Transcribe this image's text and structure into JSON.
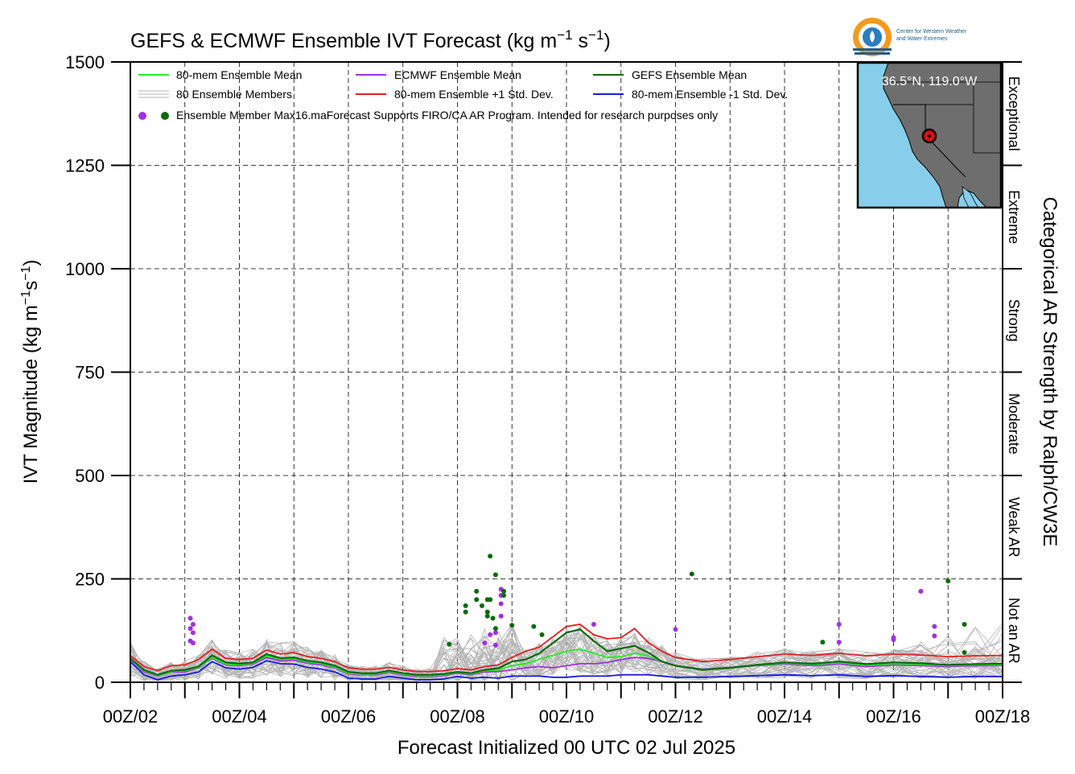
{
  "chart_data": {
    "type": "line",
    "title_main": "GEFS & ECMWF Ensemble IVT Forecast (kg m",
    "title_exp1": "−1",
    "title_mid": " s",
    "title_exp2": "−1",
    "title_end": ")",
    "ylabel_main": "IVT Magnitude (kg m",
    "ylabel_exp1": "−1",
    "ylabel_mid": "s",
    "ylabel_exp2": "−1",
    "ylabel_end": ")",
    "xlabel": "Forecast Initialized 00 UTC 02 Jul 2025",
    "right_label": "Categorical AR Strength by Ralph/CW3E",
    "ylim": [
      0,
      1500
    ],
    "xlim": [
      0,
      16
    ],
    "y_ticks": [
      0,
      250,
      500,
      750,
      1000,
      1250,
      1500
    ],
    "y_tick_labels": [
      "0",
      "250",
      "500",
      "750",
      "1000",
      "1250",
      "1500"
    ],
    "x_tick_labels": [
      "00Z/02",
      "00Z/04",
      "00Z/06",
      "00Z/08",
      "00Z/10",
      "00Z/12",
      "00Z/14",
      "00Z/16",
      "00Z/18"
    ],
    "grid": true,
    "categories": [
      {
        "label": "Not an AR",
        "range": [
          0,
          250
        ]
      },
      {
        "label": "Weak AR",
        "range": [
          250,
          500
        ]
      },
      {
        "label": "Moderate",
        "range": [
          500,
          750
        ]
      },
      {
        "label": "Strong",
        "range": [
          750,
          1000
        ]
      },
      {
        "label": "Extreme",
        "range": [
          1000,
          1250
        ]
      },
      {
        "label": "Exceptional",
        "range": [
          1250,
          1500
        ]
      }
    ],
    "legend": {
      "ens_mean": "80-mem Ensemble Mean",
      "ecmwf_mean": "ECMWF Ensemble Mean",
      "gefs_mean": "GEFS Ensemble Mean",
      "members": "80 Ensemble Members",
      "plus_std": "80-mem Ensemble +1 Std. Dev.",
      "minus_std": "80-mem Ensemble -1 Std. Dev.",
      "max_note": "Ensemble Member Max16.maForecast Supports FIRO/CA AR Program. Intended for research purposes only"
    },
    "colors": {
      "ens_mean": "#22ee22",
      "ecmwf_mean": "#a030e0",
      "gefs_mean": "#0a6a0a",
      "members": "#b4b4b4",
      "plus_std": "#e02020",
      "minus_std": "#1a1ae0",
      "ocean": "#87ceeb",
      "land": "#6e6e6e",
      "marker": "#e01010"
    },
    "series": [
      {
        "key": "gefs_mean",
        "x": [
          0,
          0.25,
          0.5,
          0.75,
          1,
          1.25,
          1.5,
          1.75,
          2,
          2.25,
          2.5,
          2.75,
          3,
          3.25,
          3.5,
          3.75,
          4,
          4.25,
          4.5,
          4.75,
          5,
          5.25,
          5.5,
          5.75,
          6,
          6.25,
          6.5,
          6.75,
          7,
          7.25,
          7.5,
          7.75,
          8,
          8.25,
          8.5,
          8.75,
          9,
          9.25,
          9.5,
          9.75,
          10,
          10.5,
          11,
          11.5,
          12,
          12.5,
          13,
          13.5,
          14,
          14.5,
          15,
          15.5,
          16
        ],
        "values": [
          58,
          30,
          18,
          28,
          30,
          38,
          65,
          48,
          45,
          48,
          68,
          58,
          60,
          52,
          48,
          40,
          25,
          22,
          22,
          28,
          22,
          18,
          18,
          20,
          25,
          22,
          30,
          34,
          50,
          55,
          70,
          95,
          120,
          128,
          100,
          75,
          82,
          88,
          72,
          50,
          40,
          30,
          35,
          42,
          48,
          45,
          50,
          44,
          48,
          46,
          42,
          44,
          45
        ]
      },
      {
        "key": "plus_std",
        "x": [
          0,
          0.25,
          0.5,
          0.75,
          1,
          1.25,
          1.5,
          1.75,
          2,
          2.25,
          2.5,
          2.75,
          3,
          3.25,
          3.5,
          3.75,
          4,
          4.25,
          4.5,
          4.75,
          5,
          5.25,
          5.5,
          5.75,
          6,
          6.25,
          6.5,
          6.75,
          7,
          7.25,
          7.5,
          7.75,
          8,
          8.25,
          8.5,
          8.75,
          9,
          9.25,
          9.5,
          9.75,
          10,
          10.5,
          11,
          11.5,
          12,
          12.5,
          13,
          13.5,
          14,
          14.5,
          15,
          15.5,
          16
        ],
        "values": [
          65,
          38,
          28,
          40,
          42,
          55,
          80,
          58,
          55,
          58,
          78,
          68,
          72,
          62,
          58,
          50,
          35,
          32,
          32,
          36,
          30,
          26,
          26,
          28,
          33,
          30,
          38,
          42,
          60,
          75,
          85,
          110,
          135,
          140,
          115,
          105,
          108,
          130,
          96,
          75,
          60,
          50,
          55,
          62,
          68,
          65,
          70,
          64,
          68,
          66,
          62,
          64,
          65
        ]
      },
      {
        "key": "ecmwf_mean",
        "x": [
          0,
          0.25,
          0.5,
          0.75,
          1,
          1.25,
          1.5,
          1.75,
          2,
          2.25,
          2.5,
          2.75,
          3,
          3.25,
          3.5,
          3.75,
          4,
          4.25,
          4.5,
          4.75,
          5,
          5.25,
          5.5,
          5.75,
          6,
          6.25,
          6.5,
          6.75,
          7,
          7.25,
          7.5,
          7.75,
          8,
          8.25,
          8.5,
          8.75,
          9,
          9.25,
          9.5,
          9.75,
          10,
          10.5,
          11,
          11.5,
          12,
          12.5,
          13,
          13.5,
          14,
          14.5,
          15,
          15.5,
          16
        ],
        "values": [
          55,
          25,
          15,
          25,
          25,
          35,
          58,
          42,
          40,
          44,
          60,
          52,
          54,
          46,
          42,
          35,
          20,
          18,
          18,
          24,
          18,
          14,
          14,
          16,
          22,
          18,
          25,
          26,
          30,
          35,
          38,
          35,
          40,
          45,
          45,
          48,
          55,
          60,
          58,
          50,
          40,
          32,
          36,
          40,
          44,
          40,
          44,
          38,
          42,
          40,
          38,
          40,
          40
        ]
      },
      {
        "key": "ens_mean",
        "x": [
          0,
          0.25,
          0.5,
          0.75,
          1,
          1.25,
          1.5,
          1.75,
          2,
          2.25,
          2.5,
          2.75,
          3,
          3.25,
          3.5,
          3.75,
          4,
          4.25,
          4.5,
          4.75,
          5,
          5.25,
          5.5,
          5.75,
          6,
          6.25,
          6.5,
          6.75,
          7,
          7.25,
          7.5,
          7.75,
          8,
          8.25,
          8.5,
          8.75,
          9,
          9.25,
          9.5,
          9.75,
          10,
          10.5,
          11,
          11.5,
          12,
          12.5,
          13,
          13.5,
          14,
          14.5,
          15,
          15.5,
          16
        ],
        "values": [
          56,
          28,
          16,
          26,
          28,
          36,
          60,
          44,
          42,
          46,
          64,
          55,
          57,
          49,
          45,
          37,
          22,
          20,
          20,
          26,
          20,
          16,
          16,
          18,
          24,
          20,
          28,
          30,
          40,
          45,
          55,
          65,
          75,
          80,
          70,
          60,
          62,
          70,
          64,
          50,
          40,
          31,
          35,
          41,
          46,
          43,
          47,
          41,
          45,
          43,
          40,
          42,
          42
        ]
      },
      {
        "key": "minus_std",
        "x": [
          0,
          0.25,
          0.5,
          0.75,
          1,
          1.25,
          1.5,
          1.75,
          2,
          2.25,
          2.5,
          2.75,
          3,
          3.25,
          3.5,
          3.75,
          4,
          4.25,
          4.5,
          4.75,
          5,
          5.25,
          5.5,
          5.75,
          6,
          6.25,
          6.5,
          6.75,
          7,
          7.25,
          7.5,
          7.75,
          8,
          8.25,
          8.5,
          8.75,
          9,
          9.25,
          9.5,
          9.75,
          10,
          10.5,
          11,
          11.5,
          12,
          12.5,
          13,
          13.5,
          14,
          14.5,
          15,
          15.5,
          16
        ],
        "values": [
          50,
          18,
          6,
          15,
          18,
          25,
          50,
          35,
          32,
          36,
          52,
          45,
          44,
          36,
          32,
          25,
          10,
          8,
          8,
          14,
          10,
          6,
          6,
          8,
          14,
          10,
          12,
          10,
          15,
          15,
          15,
          12,
          12,
          15,
          15,
          15,
          18,
          18,
          18,
          15,
          12,
          12,
          14,
          16,
          18,
          16,
          18,
          14,
          16,
          14,
          12,
          14,
          14
        ]
      }
    ],
    "member_dots_ecmwf": [
      {
        "x": 1.1,
        "y": 155
      },
      {
        "x": 1.1,
        "y": 130
      },
      {
        "x": 1.1,
        "y": 100
      },
      {
        "x": 1.15,
        "y": 140
      },
      {
        "x": 1.15,
        "y": 120
      },
      {
        "x": 1.15,
        "y": 95
      },
      {
        "x": 6.5,
        "y": 95
      },
      {
        "x": 6.6,
        "y": 115
      },
      {
        "x": 6.7,
        "y": 90
      },
      {
        "x": 6.7,
        "y": 120
      },
      {
        "x": 6.8,
        "y": 225
      },
      {
        "x": 6.8,
        "y": 210
      },
      {
        "x": 6.8,
        "y": 190
      },
      {
        "x": 6.8,
        "y": 160
      },
      {
        "x": 8.5,
        "y": 140
      },
      {
        "x": 10.0,
        "y": 128
      },
      {
        "x": 13.0,
        "y": 140
      },
      {
        "x": 13.0,
        "y": 97
      },
      {
        "x": 14.0,
        "y": 108
      },
      {
        "x": 14.0,
        "y": 103
      },
      {
        "x": 14.5,
        "y": 220
      },
      {
        "x": 14.75,
        "y": 135
      },
      {
        "x": 14.75,
        "y": 112
      }
    ],
    "member_dots_gefs": [
      {
        "x": 5.85,
        "y": 92
      },
      {
        "x": 6.15,
        "y": 185
      },
      {
        "x": 6.15,
        "y": 170
      },
      {
        "x": 6.35,
        "y": 220
      },
      {
        "x": 6.35,
        "y": 200
      },
      {
        "x": 6.45,
        "y": 185
      },
      {
        "x": 6.55,
        "y": 200
      },
      {
        "x": 6.55,
        "y": 170
      },
      {
        "x": 6.55,
        "y": 160
      },
      {
        "x": 6.6,
        "y": 305
      },
      {
        "x": 6.6,
        "y": 200
      },
      {
        "x": 6.65,
        "y": 155
      },
      {
        "x": 6.7,
        "y": 260
      },
      {
        "x": 6.7,
        "y": 130
      },
      {
        "x": 6.85,
        "y": 220
      },
      {
        "x": 6.85,
        "y": 210
      },
      {
        "x": 7.0,
        "y": 138
      },
      {
        "x": 7.4,
        "y": 135
      },
      {
        "x": 7.55,
        "y": 115
      },
      {
        "x": 10.3,
        "y": 262
      },
      {
        "x": 12.7,
        "y": 97
      },
      {
        "x": 15.0,
        "y": 245
      },
      {
        "x": 15.3,
        "y": 140
      },
      {
        "x": 15.3,
        "y": 72
      }
    ],
    "map_label": "36.5°N, 119.0°W",
    "logo_text_1": "Center for Western Weather",
    "logo_text_2": "and Water Extremes"
  }
}
